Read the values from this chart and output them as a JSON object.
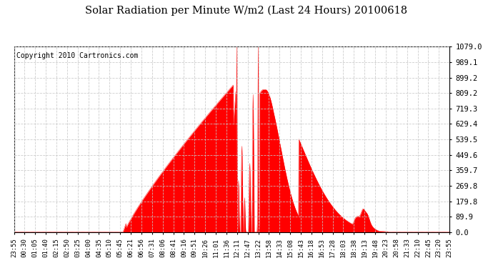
{
  "title": "Solar Radiation per Minute W/m2 (Last 24 Hours) 20100618",
  "copyright": "Copyright 2010 Cartronics.com",
  "bg_color": "#ffffff",
  "plot_bg_color": "#ffffff",
  "fill_color": "#ff0000",
  "line_color": "#ff0000",
  "dashed_line_color": "#ff0000",
  "grid_color": "#c8c8c8",
  "ytick_labels": [
    "0.0",
    "89.9",
    "179.8",
    "269.8",
    "359.7",
    "449.6",
    "539.5",
    "629.4",
    "719.3",
    "809.2",
    "899.2",
    "989.1",
    "1079.0"
  ],
  "ytick_values": [
    0.0,
    89.9,
    179.8,
    269.8,
    359.7,
    449.6,
    539.5,
    629.4,
    719.3,
    809.2,
    899.2,
    989.1,
    1079.0
  ],
  "ymax": 1079.0,
  "ymin": 0.0,
  "xtick_labels": [
    "23:55",
    "00:30",
    "01:05",
    "01:40",
    "02:15",
    "02:50",
    "03:25",
    "04:00",
    "04:35",
    "05:10",
    "05:45",
    "06:21",
    "06:56",
    "07:31",
    "08:06",
    "08:41",
    "09:16",
    "09:51",
    "10:26",
    "11:01",
    "11:36",
    "12:11",
    "12:47",
    "13:22",
    "13:58",
    "14:33",
    "15:08",
    "15:43",
    "16:18",
    "16:53",
    "17:28",
    "18:03",
    "18:38",
    "19:13",
    "19:48",
    "20:23",
    "20:58",
    "21:33",
    "22:10",
    "22:45",
    "23:20",
    "23:55"
  ]
}
